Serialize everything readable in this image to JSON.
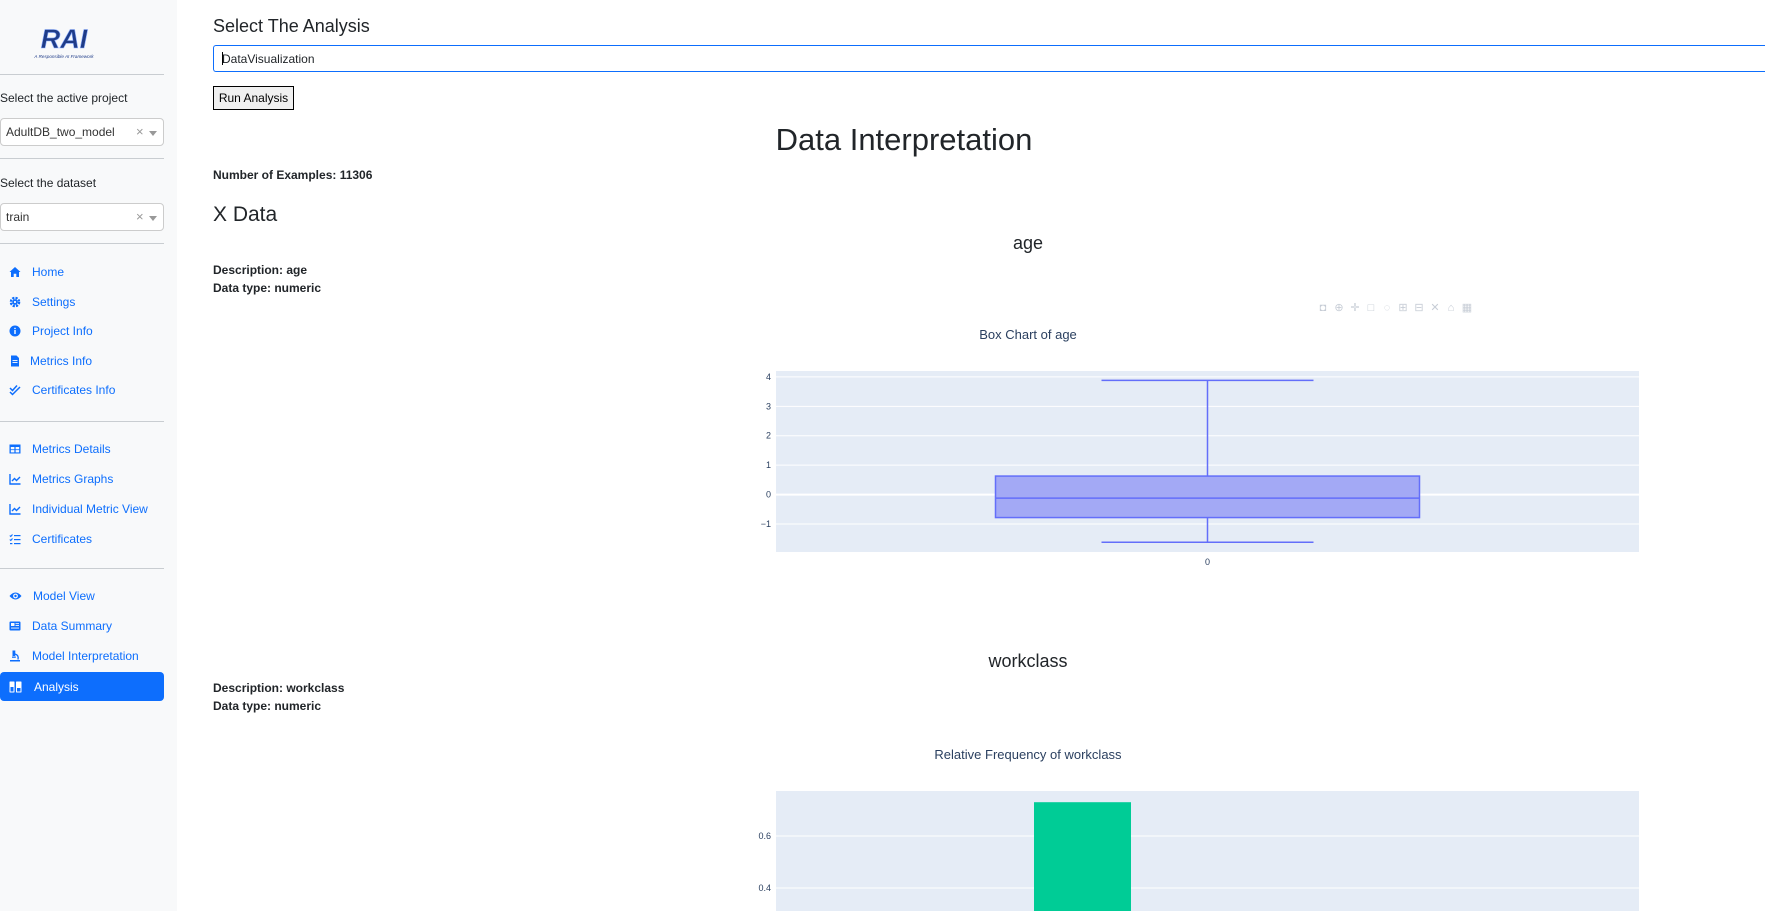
{
  "sidebar": {
    "logo_text": "RAI",
    "logo_tagline": "A Responsible AI Framework",
    "project_label": "Select the active project",
    "project_value": "AdultDB_two_model",
    "dataset_label": "Select the dataset",
    "dataset_value": "train",
    "clear_glyph": "×",
    "nav_group1": [
      {
        "label": "Home",
        "icon": "home-icon"
      },
      {
        "label": "Settings",
        "icon": "gear-icon"
      },
      {
        "label": "Project Info",
        "icon": "info-icon"
      },
      {
        "label": "Metrics Info",
        "icon": "file-icon"
      },
      {
        "label": "Certificates Info",
        "icon": "check-double-icon"
      }
    ],
    "nav_group2": [
      {
        "label": "Metrics Details",
        "icon": "table-icon"
      },
      {
        "label": "Metrics Graphs",
        "icon": "chart-line-icon"
      },
      {
        "label": "Individual Metric View",
        "icon": "chart-line-icon"
      },
      {
        "label": "Certificates",
        "icon": "list-check-icon"
      }
    ],
    "nav_group3": [
      {
        "label": "Model View",
        "icon": "eye-icon"
      },
      {
        "label": "Data Summary",
        "icon": "newspaper-icon"
      },
      {
        "label": "Model Interpretation",
        "icon": "microscope-icon"
      },
      {
        "label": "Analysis",
        "icon": "flask-icon",
        "active": true
      }
    ]
  },
  "main": {
    "select_title": "Select The Analysis",
    "analysis_value": "DataVisualization",
    "run_button": "Run Analysis",
    "section_title": "Data Interpretation",
    "num_examples": "Number of Examples: 11306",
    "x_data_title": "X Data",
    "features": [
      {
        "name": "age",
        "description": "Description: age",
        "data_type": "Data type: numeric",
        "chart_title": "Box Chart of age"
      },
      {
        "name": "workclass",
        "description": "Description: workclass",
        "data_type": "Data type: numeric",
        "chart_title": "Relative Frequency of workclass"
      }
    ]
  },
  "colors": {
    "accent": "#0d6efd",
    "plot_bg": "#e5ecf6",
    "box_line": "#636efa",
    "box_fill": "#a3a9f5",
    "bar": "#00cc96"
  },
  "chart_data": [
    {
      "type": "box",
      "title": "Box Chart of age",
      "x_categories": [
        "0"
      ],
      "whisker_low": -1.62,
      "q1": -0.78,
      "median": -0.12,
      "q3": 0.63,
      "whisker_high": 3.88,
      "y_ticks": [
        -1,
        0,
        1,
        2,
        3,
        4
      ],
      "ylim": [
        -1.95,
        4.2
      ],
      "grid": true
    },
    {
      "type": "bar",
      "title": "Relative Frequency of workclass",
      "y_ticks": [
        0.4,
        0.6
      ],
      "bars": [
        {
          "value": 0.73
        }
      ],
      "grid": true
    }
  ]
}
